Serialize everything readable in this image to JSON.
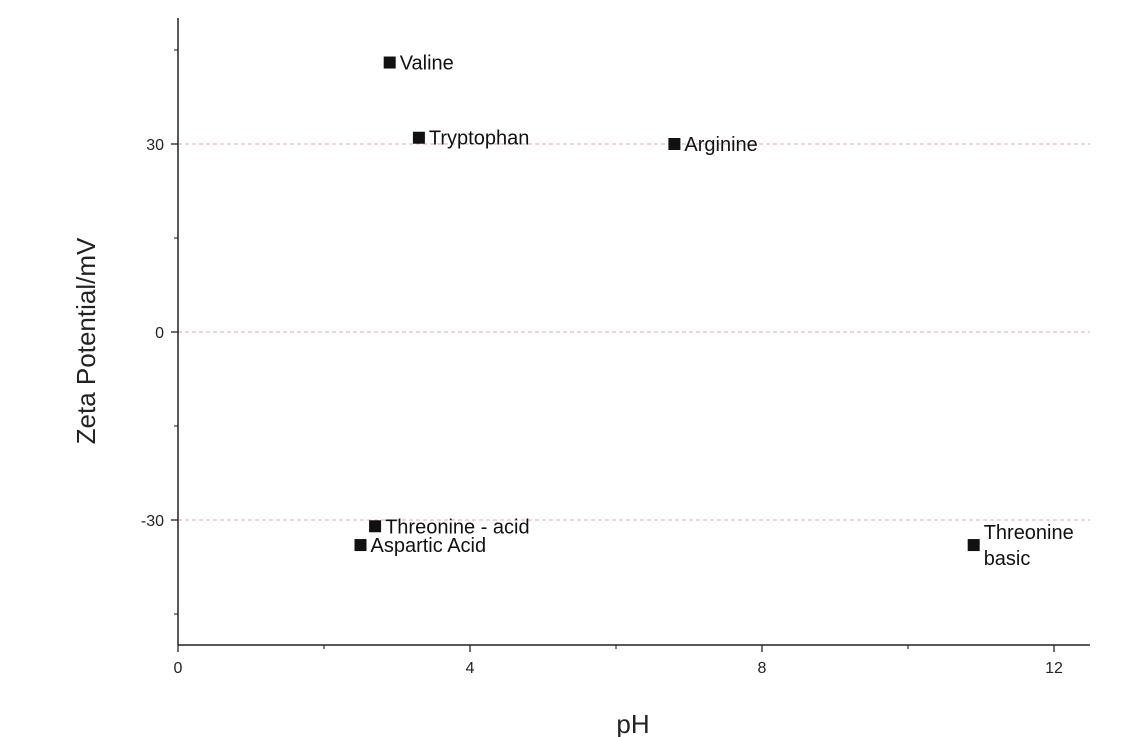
{
  "chart_data": {
    "type": "scatter",
    "title": "",
    "xlabel": "pH",
    "ylabel": "Zeta Potential/mV",
    "xlim": [
      0,
      12.5
    ],
    "ylim": [
      -50,
      50
    ],
    "x_ticks": [
      0,
      4,
      8,
      12
    ],
    "x_tick_labels": [
      "0",
      "4",
      "8",
      "12"
    ],
    "y_ticks": [
      -30,
      0,
      30
    ],
    "y_tick_labels": [
      "-30",
      "0",
      "30"
    ],
    "grid": "dashed horizontal lines at y = -30, 0, 30",
    "marker_color": "#111111",
    "grid_color": "#e6b8bf",
    "points": [
      {
        "label": "Valine",
        "x": 2.9,
        "y": 43
      },
      {
        "label": "Tryptophan",
        "x": 3.3,
        "y": 31
      },
      {
        "label": "Arginine",
        "x": 6.8,
        "y": 30
      },
      {
        "label": "Threonine - acid",
        "x": 2.7,
        "y": -31
      },
      {
        "label": "Aspartic Acid",
        "x": 2.5,
        "y": -34
      },
      {
        "label": "Threonine basic",
        "label_lines": [
          "Threonine",
          "basic"
        ],
        "x": 10.9,
        "y": -34
      }
    ]
  }
}
